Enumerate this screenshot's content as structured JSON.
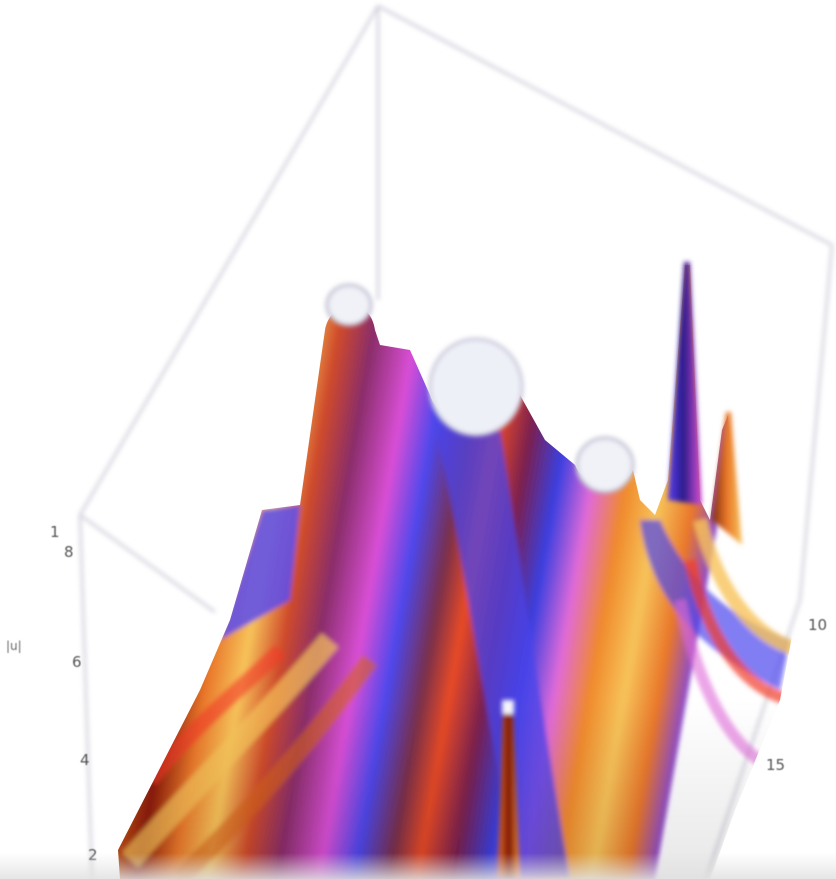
{
  "chart_data": {
    "type": "surface3d",
    "title": "",
    "zlabel": "|u|",
    "left_axis_ticks": [
      "1",
      "8",
      "6",
      "4",
      "2"
    ],
    "right_axis_ticks": [
      "10",
      "15"
    ],
    "colormap": [
      "#3b3fe0",
      "#6a4cf0",
      "#d94fd6",
      "#f23a2a",
      "#8a1208",
      "#f08a2c",
      "#f7c35a"
    ],
    "box_color": "#c9c9d6",
    "peaks": [
      {
        "name": "clipped-peak-1",
        "clipped": true
      },
      {
        "name": "clipped-peak-2",
        "clipped": true
      },
      {
        "name": "clipped-peak-3",
        "clipped": true
      },
      {
        "name": "spike-right-tall",
        "clipped": false
      },
      {
        "name": "spike-right-short",
        "clipped": false
      },
      {
        "name": "spike-front",
        "clipped": false
      }
    ]
  }
}
